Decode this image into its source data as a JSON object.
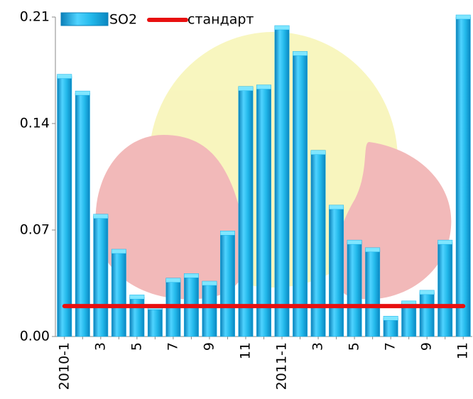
{
  "chart_data": {
    "type": "bar",
    "categories": [
      "2010-1",
      null,
      "3",
      null,
      "5",
      null,
      "7",
      null,
      "9",
      null,
      "11",
      null,
      "2011-1",
      null,
      "3",
      null,
      "5",
      null,
      "7",
      null,
      "9",
      null,
      "11"
    ],
    "series": [
      {
        "name": "SO2",
        "type": "bar",
        "color": "#1ab2e8",
        "values": [
          0.171,
          0.16,
          0.079,
          0.056,
          0.026,
          0.019,
          0.037,
          0.04,
          0.035,
          0.068,
          0.163,
          0.164,
          0.203,
          0.186,
          0.121,
          0.085,
          0.062,
          0.057,
          0.012,
          0.022,
          0.029,
          0.062,
          0.21
        ]
      },
      {
        "name": "стандарт",
        "type": "line",
        "color": "#e81010",
        "values": [
          0.02,
          0.02,
          0.02,
          0.02,
          0.02,
          0.02,
          0.02,
          0.02,
          0.02,
          0.02,
          0.02,
          0.02,
          0.02,
          0.02,
          0.02,
          0.02,
          0.02,
          0.02,
          0.02,
          0.02,
          0.02,
          0.02,
          0.02
        ]
      }
    ],
    "ylim": [
      0,
      0.21
    ],
    "yticks": [
      {
        "value": 0,
        "label": "0.00"
      },
      0.07,
      0.14,
      0.21
    ],
    "legend": "top-left"
  }
}
